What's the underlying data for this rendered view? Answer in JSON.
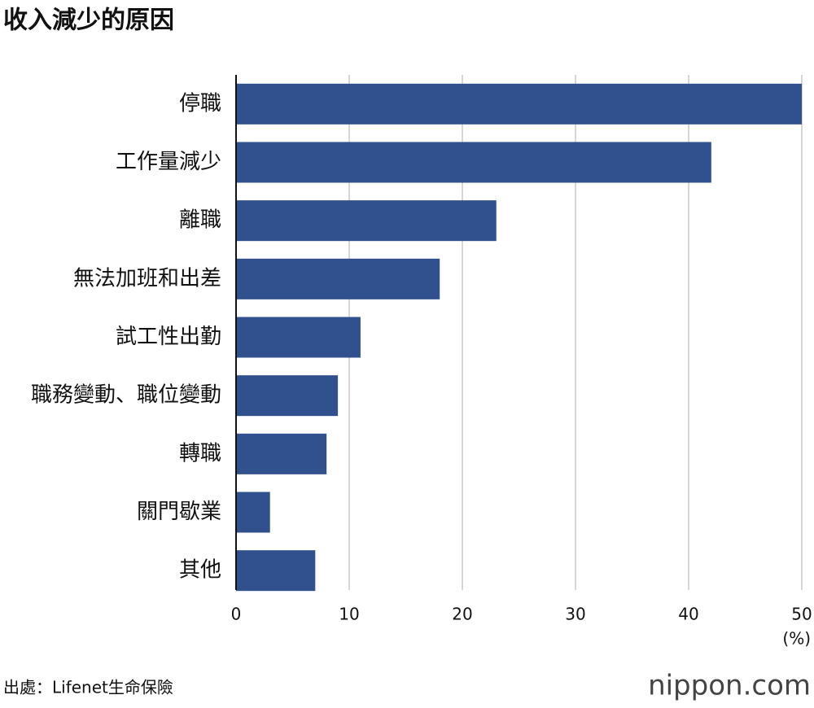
{
  "chart_data": {
    "type": "bar",
    "orientation": "horizontal",
    "title": "收入減少的原因",
    "categories": [
      "停職",
      "工作量減少",
      "離職",
      "無法加班和出差",
      "試工性出勤",
      "職務變動、職位變動",
      "轉職",
      "關門歇業",
      "其他"
    ],
    "values": [
      50,
      42,
      23,
      18,
      11,
      9,
      8,
      3,
      7
    ],
    "color": "#30508e",
    "xlim": [
      0,
      50
    ],
    "xticks": [
      0,
      10,
      20,
      30,
      40,
      50
    ],
    "grid": true,
    "xlabel": "(%)",
    "source": "出處：Lifenet生命保險",
    "brand": "nippon.com"
  }
}
